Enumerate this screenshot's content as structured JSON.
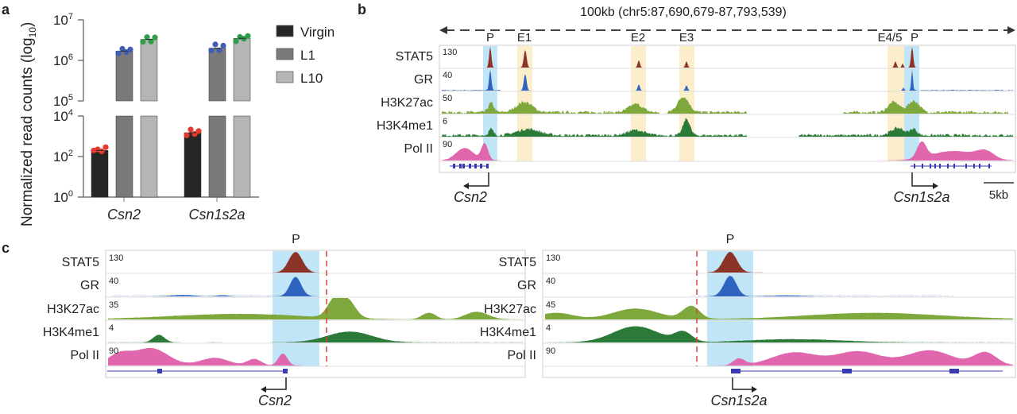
{
  "panels": {
    "a": "a",
    "b": "b",
    "c": "c"
  },
  "chart_data": {
    "type": "bar",
    "ylabel": "Normalized read counts (log",
    "ylabel_sub": "10",
    "ylabel_end": ")",
    "yscale": "log",
    "axis_break": [
      100000,
      10000
    ],
    "yticks": [
      {
        "base": "10",
        "exp": "7"
      },
      {
        "base": "10",
        "exp": "6"
      },
      {
        "base": "10",
        "exp": "5"
      },
      {
        "base": "10",
        "exp": "4"
      },
      {
        "base": "10",
        "exp": "2"
      },
      {
        "base": "10",
        "exp": "0"
      }
    ],
    "ylim": [
      1,
      10000000
    ],
    "categories": [
      "Csn2",
      "Csn1s2a"
    ],
    "series": [
      {
        "name": "Virgin",
        "color": "#262626",
        "point_color": "#e8392e",
        "values": [
          200,
          1500
        ]
      },
      {
        "name": "L1",
        "color": "#7a7a7a",
        "point_color": "#3f5fb5",
        "values": [
          1700000,
          2000000
        ]
      },
      {
        "name": "L10",
        "color": "#b5b5b5",
        "point_color": "#2e9e4a",
        "values": [
          3300000,
          3500000
        ]
      }
    ],
    "legend_position": "right"
  },
  "browser_b": {
    "region": "100kb (chr5:87,690,679-87,793,539)",
    "regions": [
      "P",
      "E1",
      "E2",
      "E3",
      "E4/5",
      "P"
    ],
    "tracks": [
      {
        "name": "STAT5",
        "scale": "130",
        "color": "#8b3326"
      },
      {
        "name": "GR",
        "scale": "40",
        "color": "#2f63c0"
      },
      {
        "name": "H3K27ac",
        "scale": "50",
        "color": "#7ea83c"
      },
      {
        "name": "H3K4me1",
        "scale": "6",
        "color": "#2b7a38"
      },
      {
        "name": "Pol II",
        "scale": "90",
        "color": "#e066ae"
      }
    ],
    "genes": [
      "Csn2",
      "Csn1s2a"
    ],
    "scalebar": "5kb"
  },
  "browser_c_left": {
    "region_label": "P",
    "tracks": [
      {
        "name": "STAT5",
        "scale": "130"
      },
      {
        "name": "GR",
        "scale": "40"
      },
      {
        "name": "H3K27ac",
        "scale": "35"
      },
      {
        "name": "H3K4me1",
        "scale": "4"
      },
      {
        "name": "Pol II",
        "scale": "90"
      }
    ],
    "gene": "Csn2"
  },
  "browser_c_right": {
    "region_label": "P",
    "tracks": [
      {
        "name": "STAT5",
        "scale": "130"
      },
      {
        "name": "GR",
        "scale": "40"
      },
      {
        "name": "H3K27ac",
        "scale": "45"
      },
      {
        "name": "H3K4me1",
        "scale": "4"
      },
      {
        "name": "Pol II",
        "scale": "90"
      }
    ],
    "gene": "Csn1s2a"
  },
  "colors": {
    "promoter_highlight": "#bfe5f6",
    "enhancer_highlight": "#fdeecb",
    "tss_line": "#d9413b"
  }
}
